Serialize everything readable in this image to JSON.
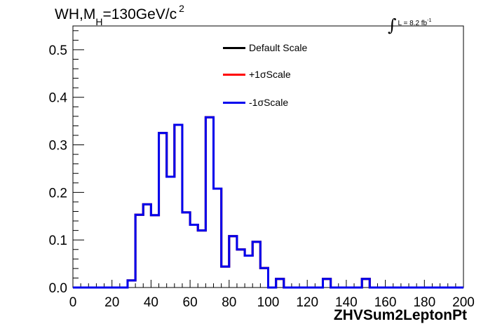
{
  "header": {
    "title_prefix": "WH,M",
    "title_sub": "H",
    "title_mid": "=130GeV/c",
    "title_sup": "2",
    "lumi_integral": "∫",
    "lumi_text": "L = 8.2 fb",
    "lumi_sup": "-1"
  },
  "chart_data": {
    "type": "line",
    "xlabel": "ZHVSum2LeptonPt",
    "ylabel": "",
    "xlim": [
      0,
      200
    ],
    "ylim": [
      0,
      0.55
    ],
    "x_ticks": [
      0,
      20,
      40,
      60,
      80,
      100,
      120,
      140,
      160,
      180,
      200
    ],
    "x_tick_labels": [
      "0",
      "20",
      "40",
      "60",
      "80",
      "100",
      "120",
      "140",
      "160",
      "180",
      "200"
    ],
    "y_ticks": [
      0.0,
      0.1,
      0.2,
      0.3,
      0.4,
      0.5
    ],
    "y_tick_labels": [
      "0.0",
      "0.1",
      "0.2",
      "0.3",
      "0.4",
      "0.5"
    ],
    "grid": false,
    "legend_position": "top-center",
    "bin_edges": [
      0,
      4,
      8,
      12,
      16,
      20,
      24,
      28,
      32,
      36,
      40,
      44,
      48,
      52,
      56,
      60,
      64,
      68,
      72,
      76,
      80,
      84,
      88,
      92,
      96,
      100,
      104,
      108,
      112,
      116,
      120,
      124,
      128,
      132,
      136,
      140,
      144,
      148,
      152,
      156,
      160,
      164,
      168,
      172,
      176,
      180,
      184,
      188,
      192,
      196,
      200
    ],
    "series": [
      {
        "name": "Default Scale",
        "color": "#000000",
        "values": [
          0,
          0,
          0,
          0,
          0,
          0,
          0,
          0.015,
          0.153,
          0.175,
          0.152,
          0.325,
          0.233,
          0.342,
          0.158,
          0.132,
          0.12,
          0.358,
          0.208,
          0.044,
          0.108,
          0.08,
          0.067,
          0.096,
          0.041,
          0,
          0.018,
          0,
          0,
          0,
          0,
          0,
          0.018,
          0,
          0,
          0,
          0,
          0.018,
          0,
          0,
          0,
          0,
          0,
          0,
          0,
          0,
          0,
          0,
          0,
          0
        ]
      },
      {
        "name": "+1σScale",
        "color": "#ff0000",
        "values": [
          0,
          0,
          0,
          0,
          0,
          0,
          0,
          0.015,
          0.153,
          0.175,
          0.152,
          0.325,
          0.233,
          0.342,
          0.158,
          0.132,
          0.12,
          0.358,
          0.208,
          0.044,
          0.108,
          0.08,
          0.067,
          0.096,
          0.041,
          0,
          0.018,
          0,
          0,
          0,
          0,
          0,
          0.018,
          0,
          0,
          0,
          0,
          0.018,
          0,
          0,
          0,
          0,
          0,
          0,
          0,
          0,
          0,
          0,
          0,
          0
        ]
      },
      {
        "name": "-1σScale",
        "color": "#0000ee",
        "values": [
          0,
          0,
          0,
          0,
          0,
          0,
          0,
          0.015,
          0.153,
          0.175,
          0.152,
          0.325,
          0.233,
          0.342,
          0.158,
          0.132,
          0.12,
          0.358,
          0.208,
          0.044,
          0.108,
          0.08,
          0.067,
          0.096,
          0.041,
          0,
          0.018,
          0,
          0,
          0,
          0,
          0,
          0.018,
          0,
          0,
          0,
          0,
          0.018,
          0,
          0,
          0,
          0,
          0,
          0,
          0,
          0,
          0,
          0,
          0,
          0
        ]
      }
    ]
  }
}
